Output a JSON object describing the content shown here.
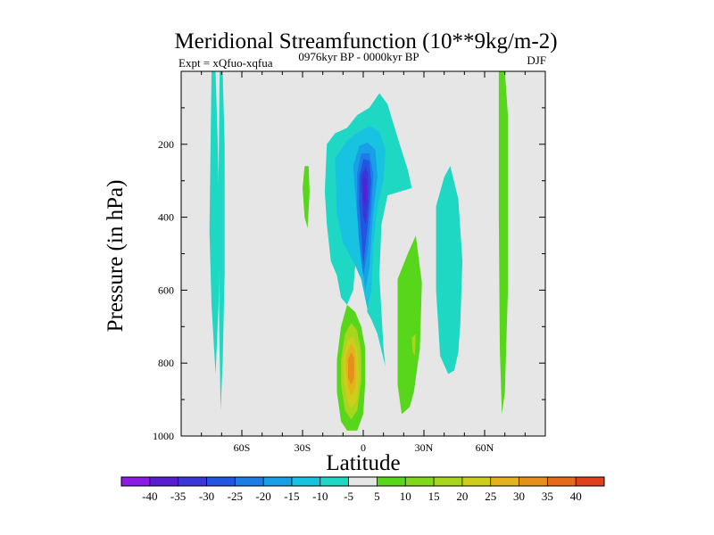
{
  "chart_data": {
    "type": "contour",
    "title": "Meridional Streamfunction (10**9kg/m-2)",
    "left_label": "Expt = xQfuo-xqfua",
    "center_label": "0976kyr BP - 0000kyr BP",
    "right_label": "DJF",
    "xlabel": "Latitude",
    "ylabel": "Pressure (in hPa)",
    "xlim": [
      -90,
      90
    ],
    "ylim": [
      1000,
      0
    ],
    "x_ticks": [
      {
        "value": -60,
        "label": "60S"
      },
      {
        "value": -30,
        "label": "30S"
      },
      {
        "value": 0,
        "label": "0"
      },
      {
        "value": 30,
        "label": "30N"
      },
      {
        "value": 60,
        "label": "60N"
      }
    ],
    "y_ticks": [
      {
        "value": 200,
        "label": "200"
      },
      {
        "value": 400,
        "label": "400"
      },
      {
        "value": 600,
        "label": "600"
      },
      {
        "value": 800,
        "label": "800"
      },
      {
        "value": 1000,
        "label": "1000"
      }
    ],
    "background_color": "#e6e6e6",
    "colorbar": {
      "labels": [
        "-40",
        "-35",
        "-30",
        "-25",
        "-20",
        "-15",
        "-10",
        "-5",
        "5",
        "10",
        "15",
        "20",
        "25",
        "30",
        "35",
        "40"
      ],
      "colors": [
        "#8b1ce6",
        "#5a1ed0",
        "#3a36d8",
        "#2256e0",
        "#1e7ce6",
        "#17a0e6",
        "#17c3e0",
        "#1ed8c3",
        "#e6e6e6",
        "#57d61c",
        "#80d81c",
        "#a8d61c",
        "#cdcd1c",
        "#e3b21c",
        "#e6901c",
        "#e66a1c",
        "#e0401c"
      ]
    },
    "regions": [
      {
        "color": "#1ed8c3",
        "points": [
          [
            -75,
            0
          ],
          [
            -73,
            0
          ],
          [
            -72,
            180
          ],
          [
            -71,
            440
          ],
          [
            -71.5,
            640
          ],
          [
            -73,
            830
          ],
          [
            -75,
            640
          ],
          [
            -76,
            440
          ]
        ]
      },
      {
        "color": "#1ed8c3",
        "points": [
          [
            -71,
            0
          ],
          [
            -69.5,
            0
          ],
          [
            -68.5,
            200
          ],
          [
            -68.5,
            550
          ],
          [
            -69.5,
            800
          ],
          [
            -70.5,
            930
          ],
          [
            -71.2,
            700
          ],
          [
            -71.5,
            300
          ]
        ]
      },
      {
        "color": "#57d61c",
        "points": [
          [
            -29,
            260
          ],
          [
            -27,
            260
          ],
          [
            -26.5,
            330
          ],
          [
            -27.5,
            430
          ],
          [
            -29,
            400
          ],
          [
            -30,
            320
          ]
        ]
      },
      {
        "color": "#1ed8c3",
        "points": [
          [
            -18,
            200
          ],
          [
            -14,
            170
          ],
          [
            -8,
            155
          ],
          [
            -3,
            120
          ],
          [
            3,
            100
          ],
          [
            8,
            60
          ],
          [
            12,
            90
          ],
          [
            18,
            200
          ],
          [
            22,
            270
          ],
          [
            24,
            320
          ],
          [
            18,
            330
          ],
          [
            12,
            340
          ],
          [
            9,
            420
          ],
          [
            8,
            560
          ],
          [
            10,
            760
          ],
          [
            11,
            810
          ],
          [
            7,
            720
          ],
          [
            4,
            680
          ],
          [
            2,
            660
          ],
          [
            2,
            560
          ],
          [
            -3,
            470
          ],
          [
            -5,
            600
          ],
          [
            -8,
            640
          ],
          [
            -11,
            620
          ],
          [
            -13,
            560
          ],
          [
            -16,
            520
          ],
          [
            -18,
            420
          ],
          [
            -19,
            330
          ]
        ]
      },
      {
        "color": "#17c3e0",
        "points": [
          [
            -14,
            240
          ],
          [
            -8,
            190
          ],
          [
            -2,
            165
          ],
          [
            3,
            150
          ],
          [
            8,
            165
          ],
          [
            11,
            215
          ],
          [
            10,
            300
          ],
          [
            7,
            370
          ],
          [
            5,
            480
          ],
          [
            4,
            600
          ],
          [
            2,
            650
          ],
          [
            -1,
            570
          ],
          [
            -5,
            520
          ],
          [
            -10,
            470
          ],
          [
            -13,
            390
          ]
        ]
      },
      {
        "color": "#17a0e6",
        "points": [
          [
            -5,
            260
          ],
          [
            -2,
            205
          ],
          [
            2,
            195
          ],
          [
            6,
            215
          ],
          [
            7,
            290
          ],
          [
            5,
            380
          ],
          [
            3,
            540
          ],
          [
            1,
            600
          ],
          [
            -1,
            520
          ],
          [
            -3,
            400
          ],
          [
            -4,
            330
          ]
        ]
      },
      {
        "color": "#1e7ce6",
        "points": [
          [
            -3,
            280
          ],
          [
            -1,
            225
          ],
          [
            3,
            225
          ],
          [
            5,
            280
          ],
          [
            4,
            380
          ],
          [
            2,
            500
          ],
          [
            0,
            560
          ],
          [
            -2,
            470
          ],
          [
            -3,
            380
          ]
        ]
      },
      {
        "color": "#2256e0",
        "points": [
          [
            -2,
            290
          ],
          [
            0,
            240
          ],
          [
            3,
            245
          ],
          [
            4,
            300
          ],
          [
            3,
            380
          ],
          [
            1.5,
            460
          ],
          [
            0,
            530
          ],
          [
            -1,
            440
          ],
          [
            -2,
            360
          ]
        ]
      },
      {
        "color": "#3a36d8",
        "points": [
          [
            -1,
            290
          ],
          [
            1,
            260
          ],
          [
            2.5,
            280
          ],
          [
            2.5,
            360
          ],
          [
            1.2,
            420
          ],
          [
            0,
            400
          ],
          [
            -0.5,
            340
          ]
        ]
      },
      {
        "color": "#5a1ed0",
        "points": [
          [
            0,
            300
          ],
          [
            1.2,
            285
          ],
          [
            1.8,
            330
          ],
          [
            1,
            370
          ],
          [
            0,
            350
          ]
        ]
      },
      {
        "color": "#57d61c",
        "points": [
          [
            -13,
            790
          ],
          [
            -11,
            700
          ],
          [
            -8,
            640
          ],
          [
            -4,
            660
          ],
          [
            -1,
            700
          ],
          [
            1,
            760
          ],
          [
            1,
            850
          ],
          [
            0,
            940
          ],
          [
            -3,
            985
          ],
          [
            -8,
            985
          ],
          [
            -11,
            960
          ],
          [
            -13,
            880
          ]
        ]
      },
      {
        "color": "#a8d61c",
        "points": [
          [
            -11,
            790
          ],
          [
            -9,
            720
          ],
          [
            -6,
            690
          ],
          [
            -3,
            710
          ],
          [
            -1,
            770
          ],
          [
            -1,
            850
          ],
          [
            -3,
            930
          ],
          [
            -6,
            955
          ],
          [
            -9,
            930
          ],
          [
            -11,
            860
          ]
        ]
      },
      {
        "color": "#cdcd1c",
        "points": [
          [
            -10,
            790
          ],
          [
            -8,
            740
          ],
          [
            -5,
            725
          ],
          [
            -3,
            760
          ],
          [
            -2,
            830
          ],
          [
            -3,
            900
          ],
          [
            -6,
            925
          ],
          [
            -8,
            905
          ],
          [
            -9.5,
            850
          ]
        ]
      },
      {
        "color": "#e3b21c",
        "points": [
          [
            -8.5,
            780
          ],
          [
            -6,
            745
          ],
          [
            -4,
            765
          ],
          [
            -3.5,
            830
          ],
          [
            -4,
            870
          ],
          [
            -6,
            890
          ],
          [
            -7.5,
            865
          ],
          [
            -8.5,
            820
          ]
        ]
      },
      {
        "color": "#e6901c",
        "points": [
          [
            -7.5,
            790
          ],
          [
            -6,
            770
          ],
          [
            -4.5,
            785
          ],
          [
            -4.5,
            840
          ],
          [
            -6,
            860
          ],
          [
            -7.5,
            840
          ]
        ]
      },
      {
        "color": "#57d61c",
        "points": [
          [
            17,
            570
          ],
          [
            22,
            500
          ],
          [
            26,
            450
          ],
          [
            29,
            580
          ],
          [
            28,
            760
          ],
          [
            25,
            880
          ],
          [
            23,
            920
          ],
          [
            19,
            940
          ],
          [
            17,
            860
          ],
          [
            17,
            700
          ]
        ]
      },
      {
        "color": "#a8d61c",
        "points": [
          [
            24,
            730
          ],
          [
            26,
            720
          ],
          [
            25.5,
            780
          ],
          [
            24.5,
            770
          ]
        ]
      },
      {
        "color": "#1ed8c3",
        "points": [
          [
            36,
            370
          ],
          [
            40,
            290
          ],
          [
            43,
            260
          ],
          [
            47,
            350
          ],
          [
            49,
            520
          ],
          [
            48,
            690
          ],
          [
            47,
            770
          ],
          [
            45,
            820
          ],
          [
            42,
            830
          ],
          [
            38,
            780
          ],
          [
            36,
            600
          ]
        ]
      },
      {
        "color": "#57d61c",
        "points": [
          [
            67,
            0
          ],
          [
            70,
            0
          ],
          [
            71.5,
            120
          ],
          [
            71.5,
            600
          ],
          [
            70,
            880
          ],
          [
            68.5,
            940
          ],
          [
            67.5,
            760
          ],
          [
            67,
            400
          ]
        ]
      }
    ]
  }
}
